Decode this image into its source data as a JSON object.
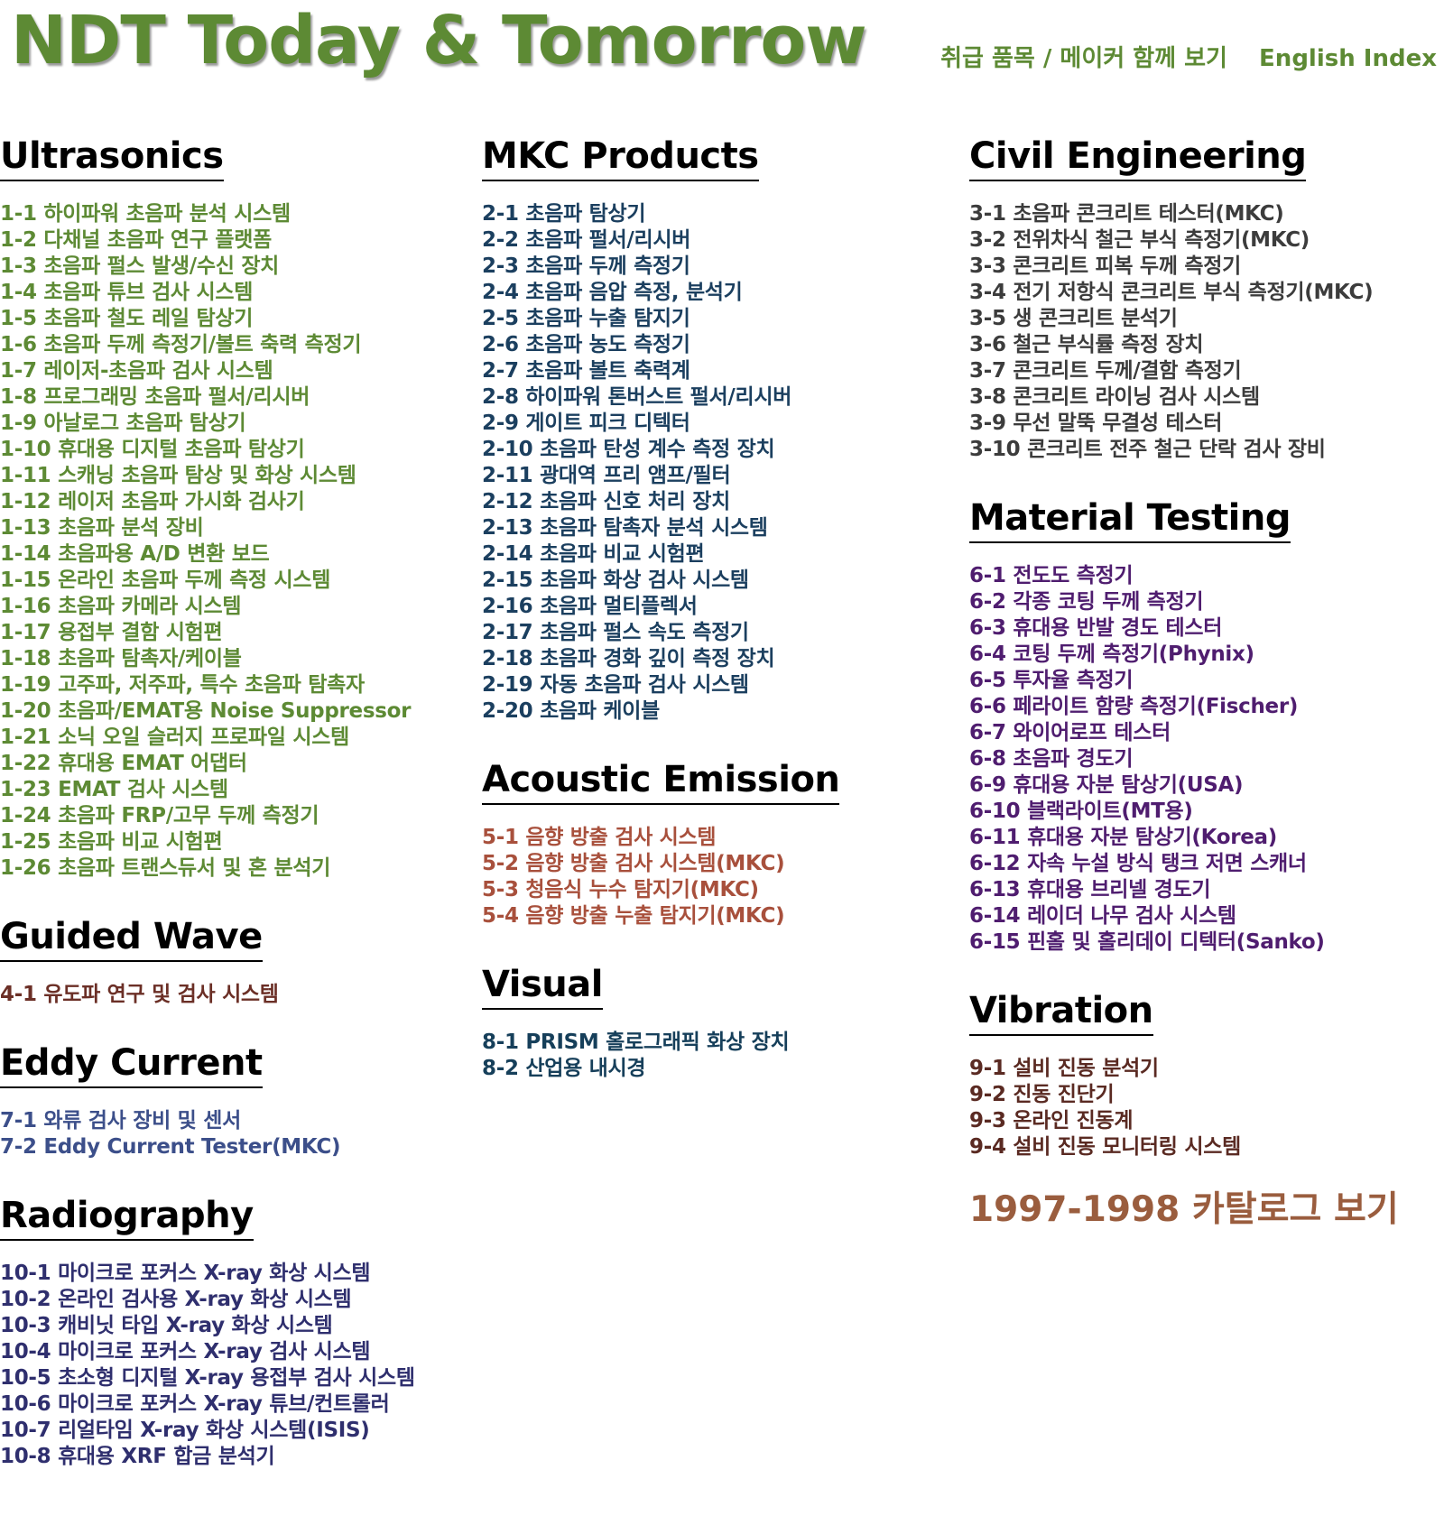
{
  "site_title": "NDT Today & Tomorrow",
  "top_links": [
    {
      "label": "취급 품목 / 메이커 함께 보기"
    },
    {
      "label": "English Index"
    }
  ],
  "colors": {
    "title": "#5d8a34",
    "ultrasonics": "#5d8a34",
    "mkc": "#1b3f5f",
    "guided_wave": "#6b2f26",
    "eddy_current": "#3c4f8a",
    "radiography": "#2f2f6e",
    "acoustic_emission": "#a8503c",
    "visual": "#163f5a",
    "civil": "#3c3c3c",
    "material": "#4f1d6f",
    "vibration": "#5a2a22",
    "catalog": "#9a5d3e"
  },
  "columns": [
    {
      "sections": [
        {
          "heading": "Ultrasonics",
          "color_key": "ultrasonics",
          "items": [
            "1-1 하이파워 초음파 분석 시스템",
            "1-2 다채널 초음파 연구 플랫폼",
            "1-3 초음파 펄스 발생/수신 장치",
            "1-4 초음파 튜브 검사 시스템",
            "1-5 초음파 철도 레일 탐상기",
            "1-6 초음파 두께 측정기/볼트 축력 측정기",
            "1-7 레이저-초음파 검사 시스템",
            "1-8 프로그래밍 초음파 펄서/리시버",
            "1-9 아날로그 초음파 탐상기",
            "1-10 휴대용 디지털 초음파 탐상기",
            "1-11 스캐닝 초음파 탐상 및 화상 시스템",
            "1-12 레이저 초음파 가시화 검사기",
            "1-13 초음파 분석 장비",
            "1-14 초음파용 A/D 변환 보드",
            "1-15 온라인 초음파 두께 측정 시스템",
            "1-16 초음파 카메라 시스템",
            "1-17 용접부 결함 시험편",
            "1-18 초음파 탐촉자/케이블",
            "1-19 고주파, 저주파, 특수 초음파 탐촉자",
            "1-20 초음파/EMAT용 Noise Suppressor",
            "1-21 소닉 오일 슬러지 프로파일 시스템",
            "1-22 휴대용 EMAT 어댑터",
            "1-23 EMAT 검사 시스템",
            "1-24 초음파 FRP/고무 두께 측정기",
            "1-25 초음파 비교 시험편",
            "1-26 초음파 트랜스듀서 및 혼 분석기"
          ]
        },
        {
          "heading": "Guided Wave",
          "color_key": "guided_wave",
          "items": [
            "4-1 유도파 연구 및 검사 시스템"
          ]
        },
        {
          "heading": "Eddy Current",
          "color_key": "eddy_current",
          "items": [
            "7-1 와류 검사 장비 및 센서",
            "7-2 Eddy Current Tester(MKC)"
          ]
        },
        {
          "heading": "Radiography",
          "color_key": "radiography",
          "items": [
            "10-1 마이크로 포커스  X-ray  화상 시스템",
            "10-2 온라인 검사용 X-ray 화상 시스템",
            "10-3 캐비닛 타입  X-ray 화상 시스템",
            "10-4 마이크로 포커스 X-ray 검사 시스템",
            "10-5 초소형 디지털 X-ray 용접부 검사 시스템",
            "10-6 마이크로 포커스 X-ray 튜브/컨트롤러",
            "10-7 리얼타임 X-ray 화상 시스템(ISIS)",
            "10-8 휴대용 XRF 합금 분석기"
          ]
        }
      ]
    },
    {
      "sections": [
        {
          "heading": "MKC Products",
          "color_key": "mkc",
          "items": [
            "2-1 초음파 탐상기",
            "2-2 초음파 펄서/리시버",
            "2-3 초음파 두께 측정기",
            "2-4 초음파 음압 측정, 분석기",
            "2-5 초음파 누출 탐지기",
            "2-6 초음파 농도 측정기",
            "2-7 초음파 볼트 축력계",
            "2-8 하이파워 톤버스트 펄서/리시버",
            "2-9 게이트 피크 디텍터",
            "2-10 초음파 탄성 계수 측정 장치",
            "2-11 광대역 프리 앰프/필터",
            "2-12 초음파 신호 처리 장치",
            "2-13 초음파 탐촉자 분석 시스템",
            "2-14 초음파 비교 시험편",
            "2-15 초음파 화상 검사 시스템",
            "2-16 초음파 멀티플렉서",
            "2-17 초음파 펄스 속도 측정기",
            "2-18 초음파 경화 깊이 측정 장치",
            "2-19 자동 초음파 검사 시스템",
            "2-20 초음파 케이블"
          ]
        },
        {
          "heading": "Acoustic Emission",
          "color_key": "acoustic_emission",
          "items": [
            "5-1 음향 방출 검사 시스템",
            "5-2 음향 방출 검사 시스템(MKC)",
            "5-3 청음식 누수 탐지기(MKC)",
            "5-4 음향 방출 누출 탐지기(MKC)"
          ]
        },
        {
          "heading": "Visual",
          "color_key": "visual",
          "items": [
            "8-1 PRISM 홀로그래픽 화상 장치",
            "8-2 산업용 내시경"
          ]
        }
      ]
    },
    {
      "sections": [
        {
          "heading": "Civil Engineering",
          "color_key": "civil",
          "items": [
            "3-1 초음파 콘크리트 테스터(MKC)",
            "3-2 전위차식 철근 부식 측정기(MKC)",
            "3-3 콘크리트 피복 두께 측정기",
            "3-4 전기 저항식 콘크리트 부식 측정기(MKC)",
            "3-5 생 콘크리트 분석기",
            "3-6 철근 부식률 측정 장치",
            "3-7 콘크리트 두께/결함 측정기",
            "3-8 콘크리트 라이닝 검사 시스템",
            "3-9 무선 말뚝 무결성 테스터",
            "3-10 콘크리트 전주 철근 단락 검사 장비"
          ]
        },
        {
          "heading": "Material Testing",
          "color_key": "material",
          "items": [
            "6-1 전도도 측정기",
            "6-2 각종 코팅 두께 측정기",
            "6-3 휴대용 반발 경도 테스터",
            "6-4 코팅 두께 측정기(Phynix)",
            "6-5 투자율 측정기",
            "6-6 페라이트 함량 측정기(Fischer)",
            "6-7 와이어로프 테스터",
            "6-8 초음파 경도기",
            "6-9 휴대용 자분 탐상기(USA)",
            "6-10 블랙라이트(MT용)",
            "6-11 휴대용 자분 탐상기(Korea)",
            "6-12 자속 누설 방식 탱크 저면 스캐너",
            "6-13 휴대용 브리넬 경도기",
            "6-14 레이더 나무 검사 시스템",
            "6-15 핀홀 및 홀리데이 디텍터(Sanko)"
          ]
        },
        {
          "heading": "Vibration",
          "color_key": "vibration",
          "items": [
            "9-1 설비 진동 분석기",
            "9-2 진동 진단기",
            "9-3 온라인 진동계",
            "9-4 설비 진동 모니터링 시스템"
          ]
        }
      ]
    }
  ],
  "catalog_link": "1997-1998 카탈로그 보기"
}
